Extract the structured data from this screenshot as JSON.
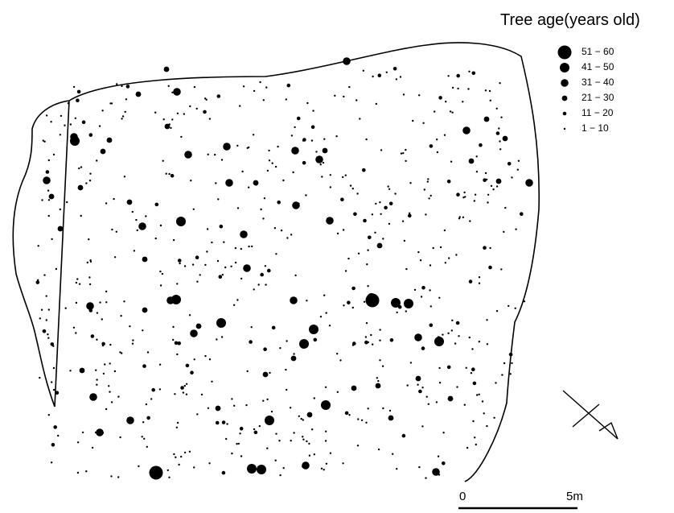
{
  "legend": {
    "title": "Tree age(years old)",
    "classes": [
      {
        "label": "51 − 60"
      },
      {
        "label": "41 − 50"
      },
      {
        "label": "31 − 40"
      },
      {
        "label": "21 − 30"
      },
      {
        "label": "11 − 20"
      },
      {
        "label": "1 − 10"
      }
    ]
  },
  "scale_bar": {
    "start_label": "0",
    "end_label": "5m"
  },
  "north_arrow": {
    "icon": "north-arrow-icon"
  },
  "colors": {
    "ink": "#000000",
    "background": "#ffffff"
  }
}
